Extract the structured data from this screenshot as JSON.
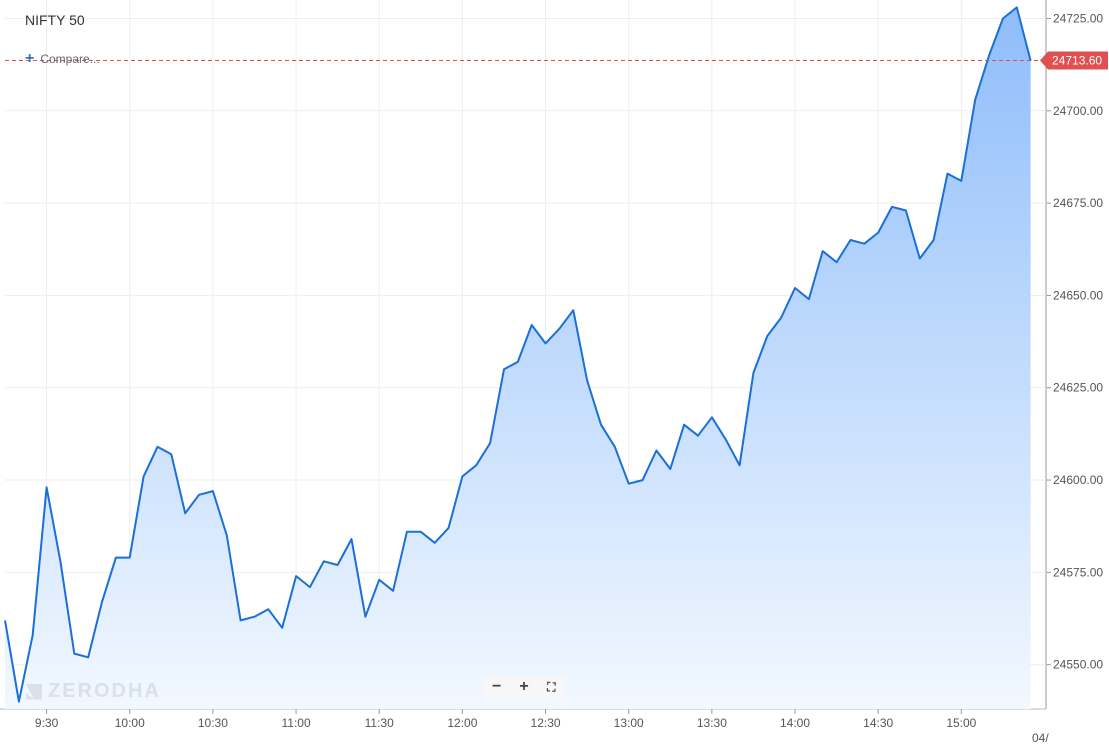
{
  "header": {
    "symbol": "NIFTY 50",
    "compare_label": "Compare..."
  },
  "watermark": "ZERODHA",
  "toolbar": {
    "zoom_out_label": "−",
    "zoom_in_label": "+",
    "fullscreen_icon": "fullscreen-icon"
  },
  "colors": {
    "line": "#1a6fd8",
    "fill_top": "#8fbdfa",
    "fill_bottom": "#f2f8ff",
    "price_tag": "#e05050",
    "grid": "#eeeeee"
  },
  "chart_data": {
    "type": "area",
    "x": [
      "9:15",
      "9:20",
      "9:25",
      "9:30",
      "9:35",
      "9:40",
      "9:45",
      "9:50",
      "9:55",
      "10:00",
      "10:05",
      "10:10",
      "10:15",
      "10:20",
      "10:25",
      "10:30",
      "10:35",
      "10:40",
      "10:45",
      "10:50",
      "10:55",
      "11:00",
      "11:05",
      "11:10",
      "11:15",
      "11:20",
      "11:25",
      "11:30",
      "11:35",
      "11:40",
      "11:45",
      "11:50",
      "11:55",
      "12:00",
      "12:05",
      "12:10",
      "12:15",
      "12:20",
      "12:25",
      "12:30",
      "12:35",
      "12:40",
      "12:45",
      "12:50",
      "12:55",
      "13:00",
      "13:05",
      "13:10",
      "13:15",
      "13:20",
      "13:25",
      "13:30",
      "13:35",
      "13:40",
      "13:45",
      "13:50",
      "13:55",
      "14:00",
      "14:05",
      "14:10",
      "14:15",
      "14:20",
      "14:25",
      "14:30",
      "14:35",
      "14:40",
      "14:45",
      "14:50",
      "14:55",
      "15:00",
      "15:05",
      "15:10",
      "15:15",
      "15:20",
      "15:25"
    ],
    "series": [
      {
        "values": [
          24562,
          24540,
          24558,
          24598,
          24578,
          24553,
          24552,
          24567,
          24579,
          24579,
          24601,
          24609,
          24607,
          24591,
          24596,
          24597,
          24585,
          24562,
          24563,
          24565,
          24560,
          24574,
          24571,
          24578,
          24577,
          24584,
          24563,
          24573,
          24570,
          24586,
          24586,
          24583,
          24587,
          24601,
          24604,
          24610,
          24630,
          24632,
          24642,
          24637,
          24641,
          24646,
          24627,
          24615,
          24609,
          24599,
          24600,
          24608,
          24603,
          24615,
          24612,
          24617,
          24611,
          24604,
          24629,
          24639,
          24644,
          24652,
          24649,
          24662,
          24659,
          24665,
          24664,
          24667,
          24674,
          24673,
          24660,
          24665,
          24683,
          24681,
          24703,
          24715,
          24725,
          24728,
          24713.6
        ]
      }
    ],
    "x_ticks": [
      "9:30",
      "10:00",
      "10:30",
      "11:00",
      "11:30",
      "12:00",
      "12:30",
      "13:00",
      "13:30",
      "14:00",
      "14:30",
      "15:00",
      "04/"
    ],
    "y_ticks": [
      "24550.00",
      "24575.00",
      "24600.00",
      "24625.00",
      "24650.00",
      "24675.00",
      "24700.00",
      "24725.00"
    ],
    "ylim": [
      24538,
      24730
    ],
    "last_price": 24713.6,
    "last_price_label": "24713.60",
    "title": "",
    "xlabel": "",
    "ylabel": "",
    "grid": true,
    "legend": "none"
  }
}
